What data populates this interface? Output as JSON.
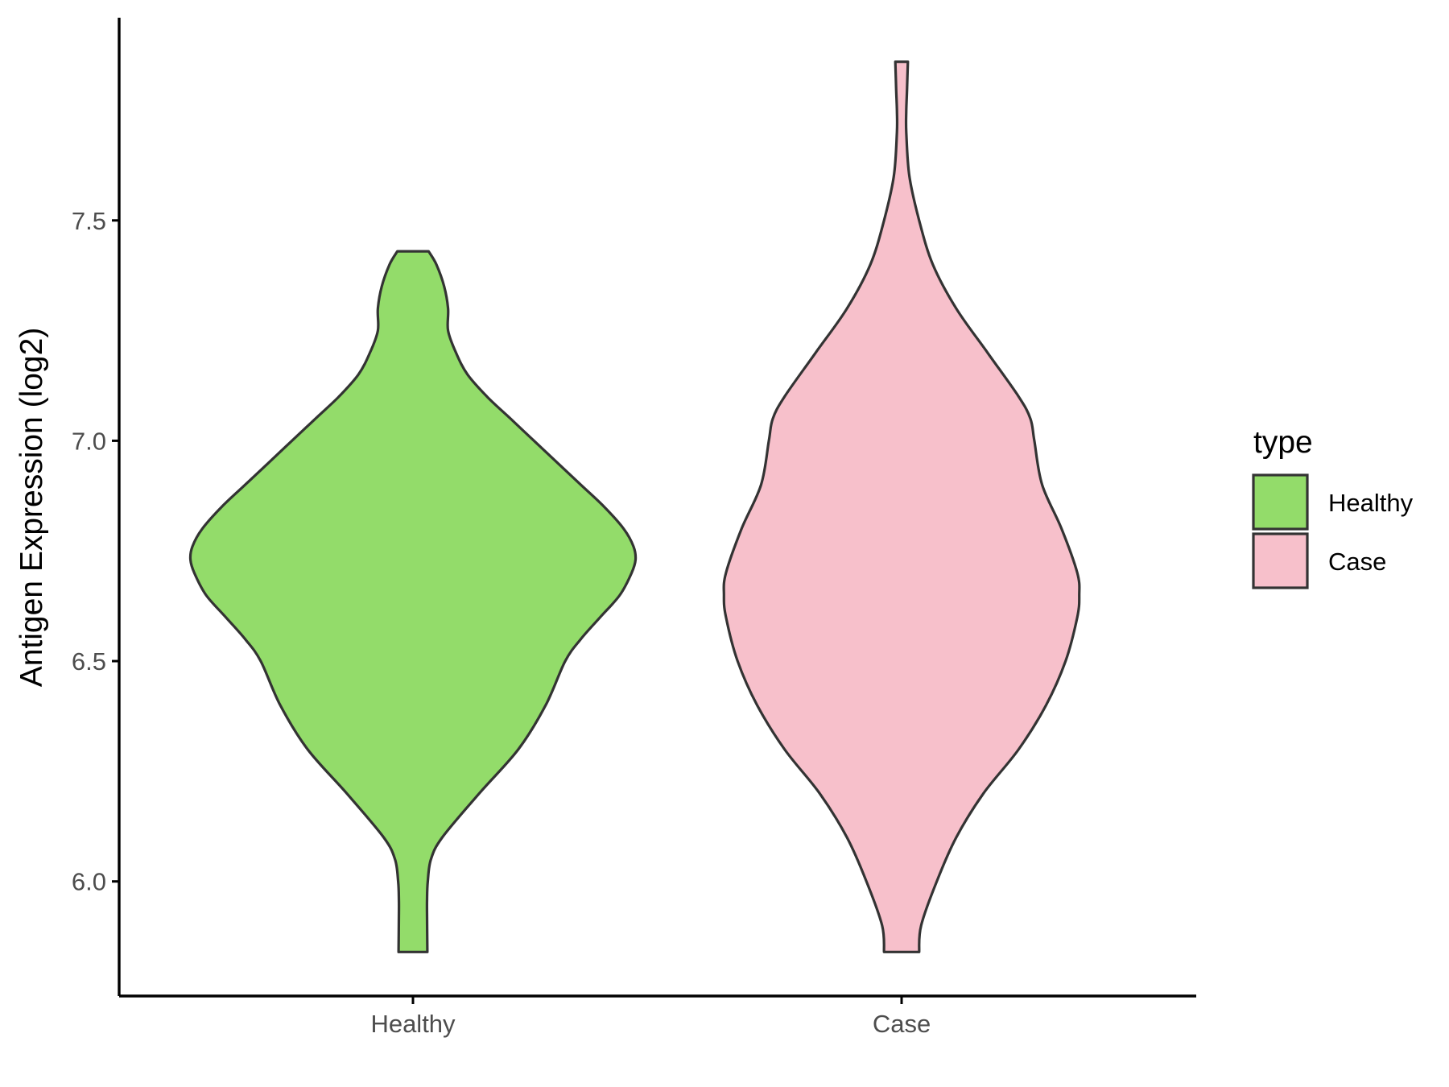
{
  "chart_data": {
    "type": "violin",
    "title": "",
    "xlabel": "",
    "ylabel": "Antigen Expression (log2)",
    "ylim": [
      5.74,
      7.96
    ],
    "yticks": [
      6.0,
      6.5,
      7.0,
      7.5
    ],
    "ytick_labels": [
      "6.0",
      "6.5",
      "7.0",
      "7.5"
    ],
    "categories": [
      "Healthy",
      "Case"
    ],
    "grid": false,
    "legend": {
      "title": "type",
      "placement": "right",
      "entries": [
        {
          "label": "Healthy",
          "color": "#93dc6a"
        },
        {
          "label": "Case",
          "color": "#f7c0cb"
        }
      ]
    },
    "series": [
      {
        "category": "Healthy",
        "color": "#93dc6a",
        "min": 5.84,
        "max": 7.43,
        "density": [
          [
            5.84,
            0.037
          ],
          [
            5.92,
            0.036
          ],
          [
            5.96,
            0.036
          ],
          [
            6.0,
            0.038
          ],
          [
            6.05,
            0.046
          ],
          [
            6.1,
            0.075
          ],
          [
            6.2,
            0.17
          ],
          [
            6.3,
            0.27
          ],
          [
            6.4,
            0.34
          ],
          [
            6.5,
            0.39
          ],
          [
            6.55,
            0.43
          ],
          [
            6.6,
            0.48
          ],
          [
            6.65,
            0.53
          ],
          [
            6.7,
            0.56
          ],
          [
            6.73,
            0.57
          ],
          [
            6.76,
            0.565
          ],
          [
            6.8,
            0.54
          ],
          [
            6.85,
            0.49
          ],
          [
            6.9,
            0.43
          ],
          [
            6.95,
            0.37
          ],
          [
            7.0,
            0.31
          ],
          [
            7.05,
            0.25
          ],
          [
            7.1,
            0.19
          ],
          [
            7.15,
            0.14
          ],
          [
            7.2,
            0.11
          ],
          [
            7.25,
            0.09
          ],
          [
            7.3,
            0.09
          ],
          [
            7.35,
            0.08
          ],
          [
            7.4,
            0.06
          ],
          [
            7.43,
            0.04
          ]
        ]
      },
      {
        "category": "Case",
        "color": "#f7c0cb",
        "min": 5.84,
        "max": 7.86,
        "density": [
          [
            5.84,
            0.045
          ],
          [
            5.9,
            0.05
          ],
          [
            6.0,
            0.09
          ],
          [
            6.1,
            0.14
          ],
          [
            6.2,
            0.21
          ],
          [
            6.3,
            0.3
          ],
          [
            6.4,
            0.37
          ],
          [
            6.5,
            0.42
          ],
          [
            6.6,
            0.45
          ],
          [
            6.65,
            0.455
          ],
          [
            6.7,
            0.45
          ],
          [
            6.8,
            0.41
          ],
          [
            6.9,
            0.36
          ],
          [
            7.0,
            0.34
          ],
          [
            7.05,
            0.33
          ],
          [
            7.1,
            0.3
          ],
          [
            7.2,
            0.22
          ],
          [
            7.3,
            0.14
          ],
          [
            7.4,
            0.08
          ],
          [
            7.5,
            0.045
          ],
          [
            7.6,
            0.02
          ],
          [
            7.7,
            0.012
          ],
          [
            7.75,
            0.012
          ],
          [
            7.8,
            0.014
          ],
          [
            7.86,
            0.016
          ]
        ]
      }
    ]
  }
}
